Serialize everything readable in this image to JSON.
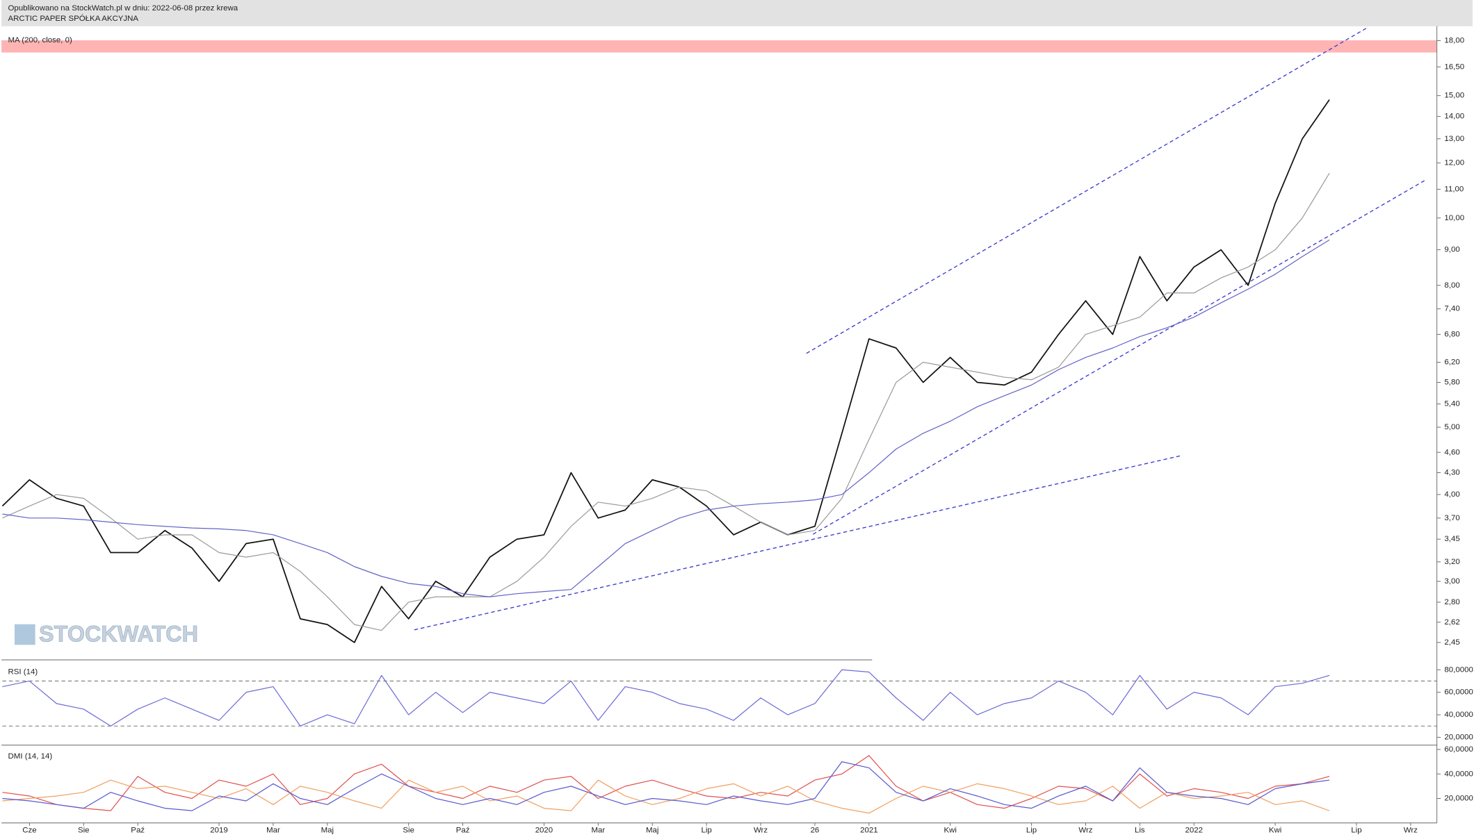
{
  "header": {
    "published": "Opublikowano na StockWatch.pl w dniu: 2022-06-08 przez krewa",
    "company": "ARCTIC PAPER SPÓŁKA AKCYJNA"
  },
  "watermark": "STOCKWATCH",
  "chart_data": [
    {
      "type": "line",
      "log_scale": true,
      "grid": false,
      "ylim": [
        2.32,
        18.76
      ],
      "yticks": [
        {
          "value": 2.45,
          "label": "2,45"
        },
        {
          "value": 2.62,
          "label": "2,62"
        },
        {
          "value": 2.8,
          "label": "2,80"
        },
        {
          "value": 3.0,
          "label": "3,00"
        },
        {
          "value": 3.2,
          "label": "3,20"
        },
        {
          "value": 3.45,
          "label": "3,45"
        },
        {
          "value": 3.7,
          "label": "3,70"
        },
        {
          "value": 4.0,
          "label": "4,00"
        },
        {
          "value": 4.3,
          "label": "4,30"
        },
        {
          "value": 4.6,
          "label": "4,60"
        },
        {
          "value": 5.0,
          "label": "5,00"
        },
        {
          "value": 5.4,
          "label": "5,40"
        },
        {
          "value": 5.8,
          "label": "5,80"
        },
        {
          "value": 6.2,
          "label": "6,20"
        },
        {
          "value": 6.8,
          "label": "6,80"
        },
        {
          "value": 7.4,
          "label": "7,40"
        },
        {
          "value": 8.0,
          "label": "8,00"
        },
        {
          "value": 9.0,
          "label": "9,00"
        },
        {
          "value": 10.0,
          "label": "10,00"
        },
        {
          "value": 11.0,
          "label": "11,00"
        },
        {
          "value": 12.0,
          "label": "12,00"
        },
        {
          "value": 13.0,
          "label": "13,00"
        },
        {
          "value": 14.0,
          "label": "14,00"
        },
        {
          "value": 15.0,
          "label": "15,00"
        },
        {
          "value": 16.5,
          "label": "16,50"
        },
        {
          "value": 18.0,
          "label": "18,00"
        }
      ],
      "series": [
        {
          "color": "#111111",
          "values": [
            3.85,
            4.2,
            3.95,
            3.85,
            3.3,
            3.3,
            3.55,
            3.35,
            3.0,
            3.4,
            3.45,
            2.65,
            2.6,
            2.45,
            2.95,
            2.65,
            3.0,
            2.85,
            3.25,
            3.45,
            3.5,
            4.3,
            3.7,
            3.8,
            4.2,
            4.1,
            3.85,
            3.5,
            3.65,
            3.5,
            3.6,
            4.9,
            6.7,
            6.5,
            5.8,
            6.3,
            5.8,
            5.75,
            6.0,
            6.8,
            7.6,
            6.8,
            8.8,
            7.6,
            8.5,
            9.0,
            8.0,
            10.5,
            13.0,
            14.8,
            null,
            null,
            null
          ]
        },
        {
          "color": "#9a9a9a",
          "values": [
            3.7,
            3.85,
            4.0,
            3.95,
            3.7,
            3.45,
            3.5,
            3.5,
            3.3,
            3.25,
            3.3,
            3.1,
            2.85,
            2.6,
            2.55,
            2.8,
            2.85,
            2.85,
            2.85,
            3.0,
            3.25,
            3.6,
            3.9,
            3.85,
            3.95,
            4.1,
            4.05,
            3.85,
            3.65,
            3.5,
            3.55,
            3.95,
            4.8,
            5.8,
            6.2,
            6.1,
            6.0,
            5.9,
            5.85,
            6.1,
            6.8,
            7.0,
            7.2,
            7.8,
            7.8,
            8.2,
            8.5,
            9.0,
            10.0,
            11.6,
            null,
            null,
            null
          ]
        },
        {
          "name": "MA (200, close, 0)",
          "color": "#6262c8",
          "values": [
            3.75,
            3.7,
            3.7,
            3.68,
            3.65,
            3.62,
            3.6,
            3.58,
            3.57,
            3.55,
            3.5,
            3.4,
            3.3,
            3.15,
            3.05,
            2.98,
            2.95,
            2.88,
            2.85,
            2.88,
            2.9,
            2.92,
            3.15,
            3.4,
            3.55,
            3.7,
            3.8,
            3.85,
            3.88,
            3.9,
            3.93,
            4.0,
            4.3,
            4.65,
            4.9,
            5.1,
            5.35,
            5.55,
            5.75,
            6.05,
            6.3,
            6.5,
            6.75,
            6.95,
            7.2,
            7.55,
            7.9,
            8.3,
            8.8,
            9.3,
            null,
            null,
            null
          ]
        }
      ]
    },
    {
      "type": "line",
      "title": "RSI (14)",
      "grid": false,
      "ylim": [
        13,
        88
      ],
      "yticks": [
        {
          "value": 20,
          "label": "20,0000"
        },
        {
          "value": 40,
          "label": "40,0000"
        },
        {
          "value": 60,
          "label": "60,0000"
        },
        {
          "value": 80,
          "label": "80,0000"
        }
      ],
      "hlines": [
        70,
        30
      ],
      "series": [
        {
          "color": "#6b6bd6",
          "values": [
            65,
            70,
            50,
            45,
            30,
            45,
            55,
            45,
            35,
            60,
            65,
            30,
            40,
            32,
            75,
            40,
            60,
            42,
            60,
            55,
            50,
            70,
            35,
            65,
            60,
            50,
            45,
            35,
            55,
            40,
            50,
            80,
            78,
            55,
            35,
            60,
            40,
            50,
            55,
            70,
            60,
            40,
            75,
            45,
            60,
            55,
            40,
            65,
            68,
            75,
            null,
            null,
            null
          ]
        }
      ]
    },
    {
      "type": "line",
      "title": "DMI (14, 14)",
      "grid": false,
      "ylim": [
        0,
        62
      ],
      "yticks": [
        {
          "value": 20,
          "label": "20,0000"
        },
        {
          "value": 40,
          "label": "40,0000"
        },
        {
          "value": 60,
          "label": "60,0000"
        }
      ],
      "categories": [
        null,
        "Cze",
        null,
        "Sie",
        null,
        "Paź",
        null,
        null,
        "2019",
        null,
        "Mar",
        null,
        "Maj",
        null,
        null,
        "Sie",
        null,
        "Paź",
        null,
        null,
        "2020",
        null,
        "Mar",
        null,
        "Maj",
        null,
        "Lip",
        null,
        "Wrz",
        null,
        "26",
        null,
        "2021",
        null,
        null,
        "Kwi",
        null,
        null,
        "Lip",
        null,
        "Wrz",
        null,
        "Lis",
        null,
        "2022",
        null,
        null,
        "Kwi",
        null,
        null,
        "Lip",
        null,
        "Wrz"
      ],
      "series": [
        {
          "color": "#e05050",
          "values": [
            25,
            22,
            15,
            12,
            10,
            38,
            25,
            20,
            35,
            30,
            40,
            15,
            20,
            40,
            48,
            30,
            25,
            20,
            30,
            25,
            35,
            38,
            20,
            30,
            35,
            28,
            22,
            20,
            25,
            22,
            35,
            40,
            55,
            30,
            18,
            25,
            15,
            12,
            20,
            30,
            28,
            18,
            40,
            22,
            28,
            25,
            20,
            30,
            32,
            38,
            null,
            null,
            null
          ]
        },
        {
          "color": "#f0a060",
          "values": [
            18,
            20,
            22,
            25,
            35,
            28,
            30,
            25,
            20,
            28,
            15,
            30,
            25,
            18,
            12,
            35,
            25,
            30,
            18,
            22,
            12,
            10,
            35,
            22,
            15,
            20,
            28,
            32,
            22,
            30,
            18,
            12,
            8,
            20,
            30,
            25,
            32,
            28,
            22,
            15,
            18,
            30,
            12,
            25,
            20,
            22,
            25,
            15,
            18,
            10,
            null,
            null,
            null
          ]
        },
        {
          "color": "#5858d0",
          "values": [
            20,
            18,
            15,
            12,
            25,
            18,
            12,
            10,
            22,
            18,
            32,
            20,
            15,
            28,
            40,
            30,
            20,
            15,
            20,
            15,
            25,
            30,
            22,
            15,
            20,
            18,
            15,
            22,
            18,
            15,
            20,
            50,
            45,
            25,
            18,
            28,
            22,
            15,
            12,
            22,
            30,
            18,
            45,
            25,
            22,
            20,
            15,
            28,
            32,
            35,
            null,
            null,
            null
          ]
        }
      ]
    }
  ]
}
